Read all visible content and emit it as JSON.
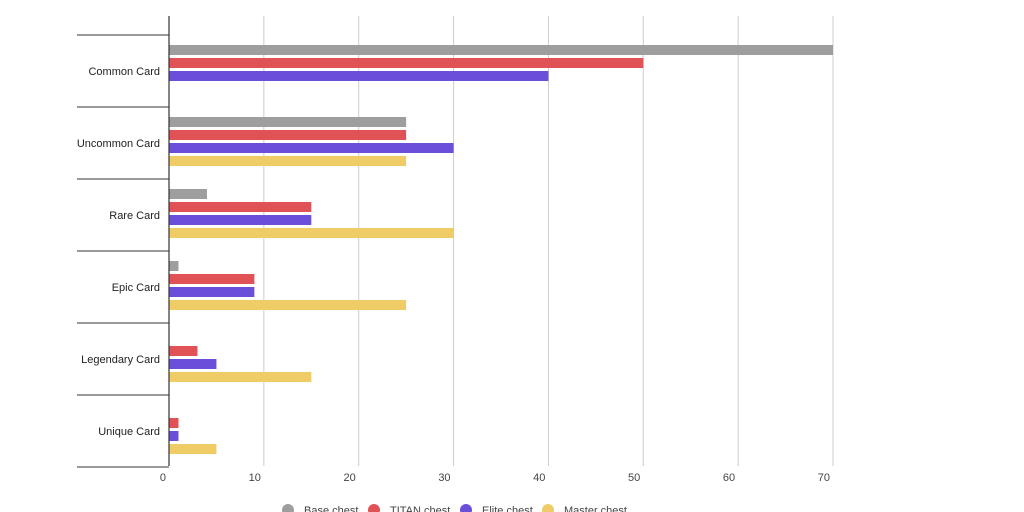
{
  "chart_data": {
    "type": "bar",
    "orientation": "horizontal",
    "title": "",
    "xlabel": "",
    "ylabel": "",
    "xlim": [
      0,
      70
    ],
    "x_ticks": [
      0,
      10,
      20,
      30,
      40,
      50,
      60,
      70
    ],
    "grid": true,
    "legend_position": "bottom",
    "categories": [
      "Common Card",
      "Uncommon Card",
      "Rare Card",
      "Epic Card",
      "Legendary Card",
      "Unique Card"
    ],
    "series": [
      {
        "name": "Base chest",
        "color": "#9e9e9e",
        "values": [
          70,
          25,
          4,
          1,
          0,
          0
        ]
      },
      {
        "name": "TITAN chest",
        "color": "#e05256",
        "values": [
          50,
          25,
          15,
          9,
          3,
          1
        ]
      },
      {
        "name": "Elite chest",
        "color": "#6b4fdb",
        "values": [
          40,
          30,
          15,
          9,
          5,
          1
        ]
      },
      {
        "name": "Master chest",
        "color": "#f0cc66",
        "values": [
          0,
          25,
          30,
          25,
          15,
          5
        ]
      }
    ]
  }
}
